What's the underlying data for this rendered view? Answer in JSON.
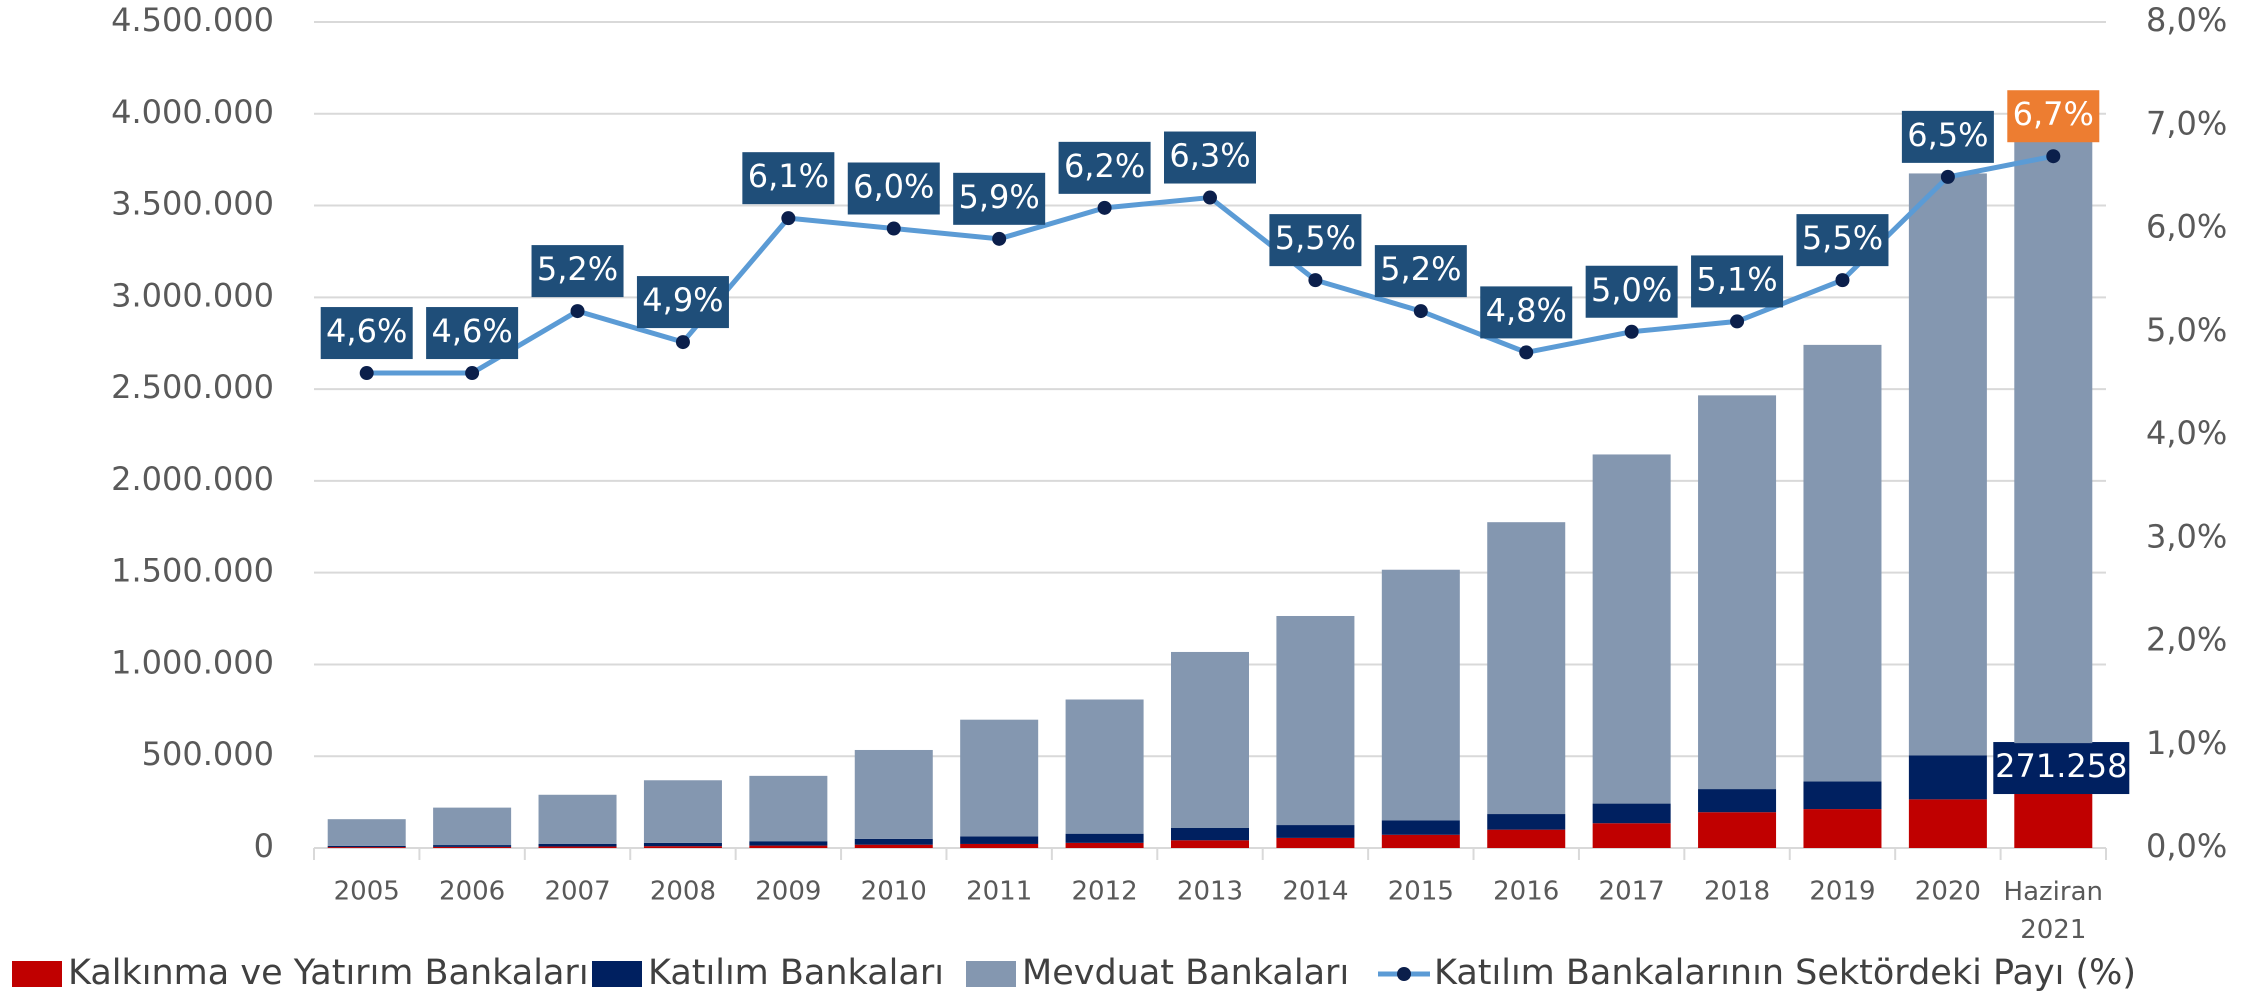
{
  "chart_data": {
    "type": "bar",
    "categories": [
      "2005",
      "2006",
      "2007",
      "2008",
      "2009",
      "2010",
      "2011",
      "2012",
      "2013",
      "2014",
      "2015",
      "2016",
      "2017",
      "2018",
      "2019",
      "2020",
      "Haziran 2021"
    ],
    "series": [
      {
        "name": "Kalkınma ve Yatırım Bankaları",
        "type": "bar",
        "color": "#c00000",
        "values": [
          5000,
          6000,
          8000,
          10000,
          13000,
          18000,
          22000,
          28000,
          42000,
          55000,
          72000,
          100000,
          135000,
          195000,
          212000,
          265000,
          300000
        ]
      },
      {
        "name": "Katılım Bankaları",
        "type": "bar",
        "color": "#002060",
        "values": [
          7000,
          10000,
          15000,
          18000,
          24000,
          32000,
          41000,
          50000,
          67000,
          70000,
          79000,
          85000,
          107000,
          126000,
          151000,
          239000,
          271258
        ],
        "value_labels": [
          null,
          null,
          null,
          null,
          null,
          null,
          null,
          null,
          null,
          null,
          null,
          null,
          null,
          null,
          null,
          null,
          "271.258"
        ]
      },
      {
        "name": "Mevduat Bankaları",
        "type": "bar",
        "color": "#8497b0",
        "values": [
          145000,
          204000,
          267000,
          341000,
          356000,
          484000,
          636000,
          731000,
          959000,
          1139000,
          1365000,
          1590000,
          1902000,
          2145000,
          2378000,
          3171000,
          3339000
        ]
      },
      {
        "name": "Katılım Bankalarının Sektördeki Payı (%)",
        "type": "line",
        "axis": "y2",
        "color": "#5b9bd5",
        "marker_color": "#0b1f4b",
        "label_color": "#1f4e79",
        "highlight_color": "#ed7d31",
        "values": [
          4.6,
          4.6,
          5.2,
          4.9,
          6.1,
          6.0,
          5.9,
          6.2,
          6.3,
          5.5,
          5.2,
          4.8,
          5.0,
          5.1,
          5.5,
          6.5,
          6.7
        ],
        "value_labels": [
          "4,6%",
          "4,6%",
          "5,2%",
          "4,9%",
          "6,1%",
          "6,0%",
          "5,9%",
          "6,2%",
          "6,3%",
          "5,5%",
          "5,2%",
          "4,8%",
          "5,0%",
          "5,1%",
          "5,5%",
          "6,5%",
          "6,7%"
        ]
      }
    ],
    "ylim": [
      0,
      4500000
    ],
    "yticks": [
      0,
      {
        "value": 500000,
        "label": "500.000"
      },
      {
        "value": 1000000,
        "label": "1.000.000"
      },
      {
        "value": 1500000,
        "label": "1.500.000"
      },
      {
        "value": 2000000,
        "label": "2.000.000"
      },
      {
        "value": 2500000,
        "label": "2.500.000"
      },
      {
        "value": 3000000,
        "label": "3.000.000"
      },
      {
        "value": 3500000,
        "label": "3.500.000"
      },
      {
        "value": 4000000,
        "label": "4.000.000"
      },
      {
        "value": 4500000,
        "label": "4.500.000"
      }
    ],
    "y2lim": [
      0,
      8
    ],
    "y2ticks": [
      {
        "value": 0,
        "label": "0,0%"
      },
      {
        "value": 1,
        "label": "1,0%"
      },
      {
        "value": 2,
        "label": "2,0%"
      },
      {
        "value": 3,
        "label": "3,0%"
      },
      {
        "value": 4,
        "label": "4,0%"
      },
      {
        "value": 5,
        "label": "5,0%"
      },
      {
        "value": 6,
        "label": "6,0%"
      },
      {
        "value": 7,
        "label": "7,0%"
      },
      {
        "value": 8,
        "label": "8,0%"
      }
    ],
    "grid": true,
    "legend": "bottom"
  }
}
